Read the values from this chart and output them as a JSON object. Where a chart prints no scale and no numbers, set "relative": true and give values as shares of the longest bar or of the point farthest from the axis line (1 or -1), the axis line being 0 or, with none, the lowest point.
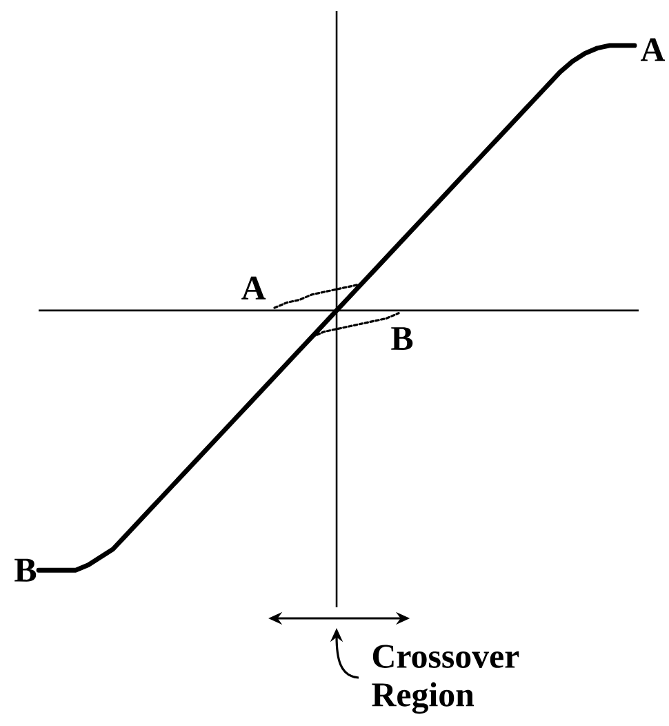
{
  "chart_data": {
    "type": "line",
    "relative": true,
    "categories": [
      null,
      null,
      null,
      null,
      null,
      null,
      null,
      null,
      null,
      null,
      null,
      null,
      null,
      null,
      null,
      null,
      null,
      null,
      null,
      null,
      null,
      null,
      null,
      null,
      null,
      null,
      null,
      null,
      null,
      null,
      null,
      null,
      null,
      null,
      null,
      null,
      null,
      null,
      null,
      null,
      null,
      null,
      null,
      null,
      null,
      null,
      null,
      null,
      null
    ],
    "series": [
      {
        "color": "#000000",
        "line_style": "solid",
        "values": [
          -0.98,
          -0.98,
          -0.98,
          -0.98,
          -0.96,
          -0.93,
          -0.9,
          -0.85,
          -0.8,
          -0.75,
          -0.7,
          -0.65,
          -0.6,
          -0.55,
          -0.5,
          -0.45,
          -0.4,
          -0.35,
          -0.3,
          -0.25,
          -0.2,
          -0.15,
          -0.1,
          -0.05,
          0,
          0.05,
          0.1,
          0.15,
          0.2,
          0.25,
          0.3,
          0.35,
          0.4,
          0.45,
          0.5,
          0.55,
          0.6,
          0.65,
          0.7,
          0.75,
          0.8,
          0.85,
          0.9,
          0.94,
          0.97,
          0.99,
          1,
          1,
          1
        ]
      },
      {
        "name": "A",
        "color": "#000000",
        "line_style": "dotted",
        "values": [
          null,
          null,
          null,
          null,
          null,
          null,
          null,
          null,
          null,
          null,
          null,
          null,
          null,
          null,
          null,
          null,
          null,
          null,
          null,
          0.01,
          0.03,
          0.04,
          0.06,
          0.07,
          0.08,
          0.09,
          0.1,
          null,
          null,
          null,
          null,
          null,
          null,
          null,
          null,
          null,
          null,
          null,
          null,
          null,
          null,
          null,
          null,
          null,
          null,
          null,
          null,
          null,
          null
        ]
      },
      {
        "name": "B",
        "color": "#000000",
        "line_style": "dotted",
        "values": [
          null,
          null,
          null,
          null,
          null,
          null,
          null,
          null,
          null,
          null,
          null,
          null,
          null,
          null,
          null,
          null,
          null,
          null,
          null,
          null,
          null,
          null,
          -0.1,
          -0.08,
          -0.07,
          -0.06,
          -0.05,
          -0.04,
          -0.03,
          -0.01,
          null,
          null,
          null,
          null,
          null,
          null,
          null,
          null,
          null,
          null,
          null,
          null,
          null,
          null,
          null,
          null,
          null,
          null,
          null
        ]
      }
    ],
    "annotations": [
      "A",
      "B",
      "Crossover Region"
    ]
  }
}
